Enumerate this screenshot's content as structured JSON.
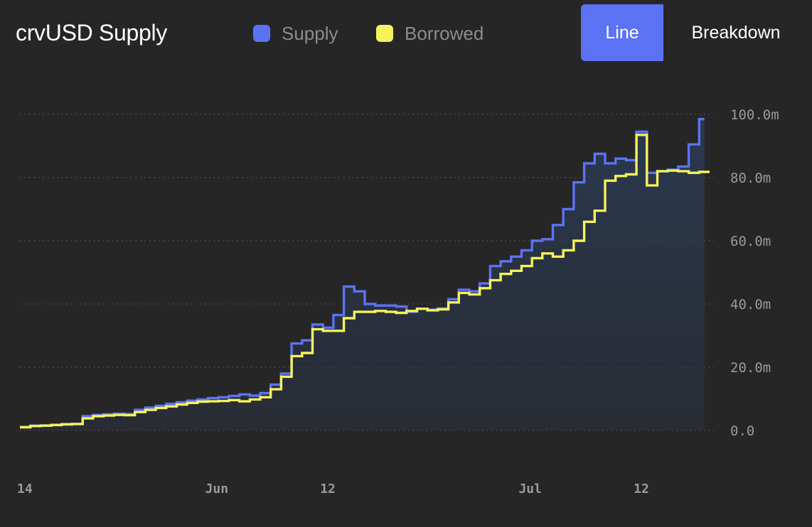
{
  "header": {
    "title": "crvUSD Supply",
    "legend": [
      {
        "label": "Supply",
        "color": "#5b73f2"
      },
      {
        "label": "Borrowed",
        "color": "#f5f25c"
      }
    ],
    "tabs": [
      {
        "label": "Line",
        "active": true
      },
      {
        "label": "Breakdown",
        "active": false
      }
    ]
  },
  "chart_data": {
    "type": "line",
    "title": "crvUSD Supply",
    "step": true,
    "grid": true,
    "yaxis_position": "right",
    "ylim": [
      0,
      100
    ],
    "y_ticks": [
      {
        "value": 0,
        "label": "0.0"
      },
      {
        "value": 20,
        "label": "20.0m"
      },
      {
        "value": 40,
        "label": "40.0m"
      },
      {
        "value": 60,
        "label": "60.0m"
      },
      {
        "value": 80,
        "label": "80.0m"
      },
      {
        "value": 100,
        "label": "100.0m"
      }
    ],
    "xlim": [
      0,
      66
    ],
    "x_ticks": [
      {
        "value": 0,
        "label": "14"
      },
      {
        "value": 18,
        "label": "Jun"
      },
      {
        "value": 29,
        "label": "12"
      },
      {
        "value": 48,
        "label": "Jul"
      },
      {
        "value": 59,
        "label": "12"
      }
    ],
    "series": [
      {
        "name": "Supply",
        "color": "#5b73f2",
        "values": [
          1.0,
          1.5,
          1.6,
          1.8,
          2.0,
          2.1,
          4.5,
          4.9,
          5.1,
          5.3,
          5.2,
          6.5,
          7.2,
          7.8,
          8.4,
          8.9,
          9.4,
          9.8,
          10.2,
          10.5,
          10.9,
          11.4,
          11.0,
          11.8,
          14.5,
          18.0,
          27.5,
          28.5,
          33.5,
          32.5,
          36.5,
          45.5,
          44.0,
          40.0,
          39.5,
          39.5,
          39.2,
          37.5,
          38.5,
          38.2,
          38.6,
          41.5,
          44.5,
          44.0,
          46.5,
          52.0,
          53.5,
          55.0,
          57.0,
          60.0,
          60.5,
          65.0,
          70.0,
          78.5,
          84.5,
          87.5,
          84.5,
          86.0,
          85.5,
          94.5,
          81.5,
          82.0,
          82.5,
          83.5,
          90.5,
          98.5
        ],
        "last_x": 65.5
      },
      {
        "name": "Borrowed",
        "color": "#f5f25c",
        "values": [
          1.0,
          1.4,
          1.5,
          1.7,
          1.9,
          2.0,
          3.8,
          4.5,
          4.7,
          4.9,
          4.8,
          5.8,
          6.5,
          7.1,
          7.6,
          8.2,
          8.7,
          9.1,
          9.2,
          9.3,
          9.6,
          9.2,
          9.8,
          10.5,
          13.0,
          17.0,
          23.5,
          24.5,
          32.0,
          31.5,
          31.5,
          35.5,
          37.5,
          37.5,
          37.8,
          37.5,
          37.2,
          37.8,
          38.5,
          38.0,
          38.3,
          40.5,
          43.5,
          43.0,
          45.0,
          47.5,
          49.5,
          50.5,
          52.0,
          54.5,
          56.0,
          55.0,
          57.0,
          60.0,
          66.0,
          69.5,
          79.0,
          80.5,
          81.0,
          93.5,
          77.5,
          82.0,
          82.2,
          82.0,
          81.5,
          81.8
        ],
        "last_x": 66
      }
    ]
  }
}
